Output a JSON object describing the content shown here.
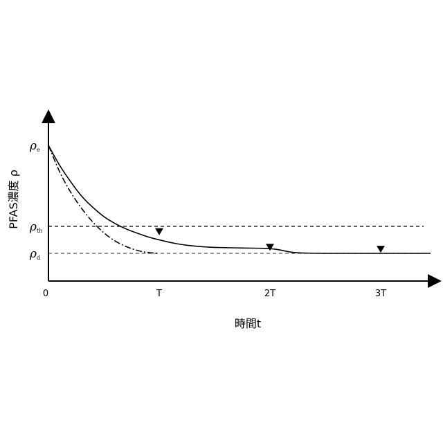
{
  "chart_data": {
    "type": "line",
    "ylabel": "PFAS濃度 ρ",
    "xlabel": "時間t",
    "x_ticks": [
      "0",
      "T",
      "2T",
      "3T"
    ],
    "x_tick_values": [
      0,
      1,
      2,
      3
    ],
    "xlim": [
      0,
      3.5
    ],
    "y_ticks": [
      {
        "symbol": "ρ",
        "sub": "e",
        "value": 1.0
      },
      {
        "symbol": "ρ",
        "sub": "th",
        "value": 0.4
      },
      {
        "symbol": "ρ",
        "sub": "d",
        "value": 0.2
      }
    ],
    "ylim": [
      -0.2,
      1.25
    ],
    "series": [
      {
        "style": "solid",
        "x": [
          0,
          0.1,
          0.2,
          0.3,
          0.4,
          0.5,
          0.6,
          0.7,
          0.8,
          0.9,
          1.0,
          1.1,
          1.2,
          1.3,
          1.4,
          1.5,
          1.6,
          1.7,
          1.8,
          1.9,
          2.0,
          2.1,
          2.2,
          2.4,
          2.6,
          2.8,
          3.0,
          3.2,
          3.45
        ],
        "y": [
          1.0,
          0.85,
          0.73,
          0.62,
          0.54,
          0.47,
          0.42,
          0.38,
          0.35,
          0.32,
          0.3,
          0.28,
          0.265,
          0.255,
          0.248,
          0.244,
          0.242,
          0.24,
          0.239,
          0.238,
          0.236,
          0.225,
          0.205,
          0.2,
          0.2,
          0.2,
          0.2,
          0.2,
          0.2
        ]
      },
      {
        "style": "dashdot",
        "x": [
          0,
          0.1,
          0.2,
          0.3,
          0.4,
          0.5,
          0.6,
          0.7,
          0.8,
          0.9,
          1.0
        ],
        "y": [
          1.0,
          0.8,
          0.65,
          0.53,
          0.43,
          0.35,
          0.29,
          0.25,
          0.22,
          0.205,
          0.2
        ]
      }
    ],
    "reference_lines": [
      {
        "label": "ρth",
        "y": 0.4,
        "style": "dashed",
        "color": "#000000"
      },
      {
        "label": "ρd",
        "y": 0.2,
        "style": "dashed",
        "color": "#555555"
      }
    ],
    "markers": [
      {
        "shape": "down-triangle",
        "x": 1.0,
        "y": 0.36
      },
      {
        "shape": "down-triangle",
        "x": 2.0,
        "y": 0.245
      },
      {
        "shape": "down-triangle",
        "x": 3.0,
        "y": 0.23
      }
    ]
  }
}
